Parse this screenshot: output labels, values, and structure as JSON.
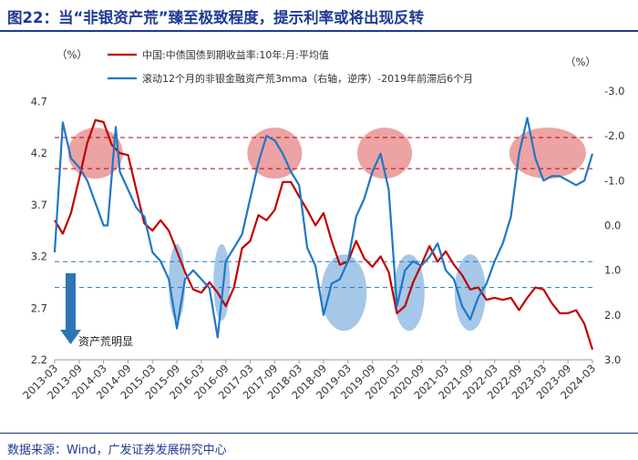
{
  "header": {
    "title": "图22：当“非银资产荒”臻至极致程度，提示利率或将出现反转"
  },
  "footer": {
    "source": "数据来源：Wind，广发证券发展研究中心"
  },
  "colors": {
    "title": "#1f3a93",
    "red": "#c00000",
    "blue": "#1f77c7",
    "ellipse_red": "#e06666",
    "ellipse_blue": "#5b9bd5"
  },
  "chart_data": {
    "type": "line",
    "left_axis": {
      "unit": "（%）",
      "ticks": [
        2.2,
        2.7,
        3.2,
        3.7,
        4.2,
        4.7
      ],
      "range": [
        2.2,
        4.8
      ]
    },
    "right_axis": {
      "unit": "（%）",
      "inverted": true,
      "ticks": [
        -3.0,
        -2.0,
        -1.0,
        0.0,
        1.0,
        2.0,
        3.0
      ],
      "range": [
        -3.0,
        3.0
      ]
    },
    "x_ticks": [
      "2013-03",
      "2013-09",
      "2014-03",
      "2014-09",
      "2015-03",
      "2015-09",
      "2016-03",
      "2016-09",
      "2017-03",
      "2017-09",
      "2018-03",
      "2018-09",
      "2019-03",
      "2019-09",
      "2020-03",
      "2020-09",
      "2021-03",
      "2021-09",
      "2022-03",
      "2022-09",
      "2023-03",
      "2023-09",
      "2024-03"
    ],
    "annotation": "资产荒明显",
    "series": [
      {
        "name": "中国:中债国债到期收益率:10年:月:平均值",
        "axis": "left",
        "color": "#c00000",
        "points": [
          [
            "2013-03",
            3.55
          ],
          [
            "2013-05",
            3.42
          ],
          [
            "2013-07",
            3.62
          ],
          [
            "2013-09",
            3.95
          ],
          [
            "2013-11",
            4.3
          ],
          [
            "2014-01",
            4.52
          ],
          [
            "2014-03",
            4.5
          ],
          [
            "2014-05",
            4.28
          ],
          [
            "2014-07",
            4.2
          ],
          [
            "2014-09",
            4.18
          ],
          [
            "2014-11",
            3.85
          ],
          [
            "2015-01",
            3.52
          ],
          [
            "2015-03",
            3.45
          ],
          [
            "2015-05",
            3.55
          ],
          [
            "2015-07",
            3.45
          ],
          [
            "2015-09",
            3.25
          ],
          [
            "2015-11",
            3.05
          ],
          [
            "2016-01",
            2.88
          ],
          [
            "2016-03",
            2.85
          ],
          [
            "2016-05",
            2.95
          ],
          [
            "2016-07",
            2.85
          ],
          [
            "2016-09",
            2.72
          ],
          [
            "2016-11",
            2.9
          ],
          [
            "2017-01",
            3.28
          ],
          [
            "2017-03",
            3.35
          ],
          [
            "2017-05",
            3.6
          ],
          [
            "2017-07",
            3.55
          ],
          [
            "2017-09",
            3.65
          ],
          [
            "2017-11",
            3.92
          ],
          [
            "2018-01",
            3.92
          ],
          [
            "2018-03",
            3.78
          ],
          [
            "2018-05",
            3.65
          ],
          [
            "2018-07",
            3.5
          ],
          [
            "2018-09",
            3.62
          ],
          [
            "2018-11",
            3.35
          ],
          [
            "2019-01",
            3.12
          ],
          [
            "2019-03",
            3.15
          ],
          [
            "2019-05",
            3.35
          ],
          [
            "2019-07",
            3.18
          ],
          [
            "2019-09",
            3.1
          ],
          [
            "2019-11",
            3.2
          ],
          [
            "2020-01",
            3.05
          ],
          [
            "2020-03",
            2.65
          ],
          [
            "2020-05",
            2.72
          ],
          [
            "2020-07",
            2.95
          ],
          [
            "2020-09",
            3.12
          ],
          [
            "2020-11",
            3.3
          ],
          [
            "2021-01",
            3.15
          ],
          [
            "2021-03",
            3.25
          ],
          [
            "2021-05",
            3.12
          ],
          [
            "2021-07",
            3.02
          ],
          [
            "2021-09",
            2.88
          ],
          [
            "2021-11",
            2.9
          ],
          [
            "2022-01",
            2.78
          ],
          [
            "2022-03",
            2.8
          ],
          [
            "2022-05",
            2.78
          ],
          [
            "2022-07",
            2.8
          ],
          [
            "2022-09",
            2.68
          ],
          [
            "2022-11",
            2.8
          ],
          [
            "2023-01",
            2.9
          ],
          [
            "2023-03",
            2.88
          ],
          [
            "2023-05",
            2.75
          ],
          [
            "2023-07",
            2.65
          ],
          [
            "2023-09",
            2.65
          ],
          [
            "2023-11",
            2.68
          ],
          [
            "2024-01",
            2.55
          ],
          [
            "2024-03",
            2.3
          ]
        ]
      },
      {
        "name": "滚动12个月的非银金融资产荒3mma（右轴，逆序）-2019年前滞后6个月",
        "axis": "right",
        "color": "#1f77c7",
        "points": [
          [
            "2013-03",
            0.6
          ],
          [
            "2013-05",
            -2.3
          ],
          [
            "2013-07",
            -1.5
          ],
          [
            "2013-09",
            -1.3
          ],
          [
            "2013-11",
            -1.0
          ],
          [
            "2014-01",
            -0.5
          ],
          [
            "2014-03",
            0.0
          ],
          [
            "2014-04",
            0.0
          ],
          [
            "2014-06",
            -2.2
          ],
          [
            "2014-07",
            -1.2
          ],
          [
            "2014-09",
            -0.8
          ],
          [
            "2014-11",
            -0.4
          ],
          [
            "2015-01",
            -0.2
          ],
          [
            "2015-03",
            0.6
          ],
          [
            "2015-05",
            0.8
          ],
          [
            "2015-07",
            1.2
          ],
          [
            "2015-09",
            2.3
          ],
          [
            "2015-11",
            1.2
          ],
          [
            "2016-01",
            1.0
          ],
          [
            "2016-03",
            1.2
          ],
          [
            "2016-05",
            1.4
          ],
          [
            "2016-07",
            2.5
          ],
          [
            "2016-09",
            0.8
          ],
          [
            "2016-11",
            0.5
          ],
          [
            "2017-01",
            0.2
          ],
          [
            "2017-03",
            -0.6
          ],
          [
            "2017-05",
            -1.4
          ],
          [
            "2017-07",
            -2.0
          ],
          [
            "2017-09",
            -1.9
          ],
          [
            "2017-11",
            -1.6
          ],
          [
            "2018-01",
            -1.2
          ],
          [
            "2018-03",
            -0.9
          ],
          [
            "2018-05",
            0.5
          ],
          [
            "2018-07",
            0.9
          ],
          [
            "2018-09",
            2.0
          ],
          [
            "2018-11",
            1.3
          ],
          [
            "2019-01",
            1.2
          ],
          [
            "2019-03",
            0.8
          ],
          [
            "2019-05",
            -0.2
          ],
          [
            "2019-07",
            -0.6
          ],
          [
            "2019-09",
            -1.2
          ],
          [
            "2019-11",
            -1.6
          ],
          [
            "2020-01",
            -0.8
          ],
          [
            "2020-03",
            1.8
          ],
          [
            "2020-05",
            1.0
          ],
          [
            "2020-07",
            0.8
          ],
          [
            "2020-09",
            0.9
          ],
          [
            "2020-11",
            0.7
          ],
          [
            "2021-01",
            0.4
          ],
          [
            "2021-03",
            1.0
          ],
          [
            "2021-05",
            1.2
          ],
          [
            "2021-07",
            1.8
          ],
          [
            "2021-09",
            2.1
          ],
          [
            "2021-11",
            1.6
          ],
          [
            "2022-01",
            1.3
          ],
          [
            "2022-03",
            0.8
          ],
          [
            "2022-05",
            0.4
          ],
          [
            "2022-07",
            -0.2
          ],
          [
            "2022-09",
            -1.6
          ],
          [
            "2022-11",
            -2.4
          ],
          [
            "2023-01",
            -1.5
          ],
          [
            "2023-03",
            -1.0
          ],
          [
            "2023-05",
            -1.1
          ],
          [
            "2023-07",
            -1.1
          ],
          [
            "2023-09",
            -1.0
          ],
          [
            "2023-11",
            -0.9
          ],
          [
            "2024-01",
            -1.0
          ],
          [
            "2024-03",
            -1.6
          ]
        ]
      }
    ],
    "reference_lines": [
      {
        "axis": "left",
        "value": 4.35,
        "color": "#c00000"
      },
      {
        "axis": "left",
        "value": 4.05,
        "color": "#c00000"
      },
      {
        "axis": "left",
        "value": 3.15,
        "color": "#1f77c7"
      },
      {
        "axis": "left",
        "value": 2.9,
        "color": "#1f77c7"
      }
    ],
    "highlight_regions": [
      {
        "kind": "high",
        "x": "2014-01",
        "y": 4.2,
        "axis": "left"
      },
      {
        "kind": "high",
        "x": "2017-09",
        "y": 4.2,
        "axis": "left"
      },
      {
        "kind": "high",
        "x": "2019-12",
        "y": 4.2,
        "axis": "left"
      },
      {
        "kind": "high",
        "x": "2023-04",
        "y": 4.2,
        "axis": "left"
      },
      {
        "kind": "low",
        "x": "2015-09",
        "y": 2.95,
        "axis": "left"
      },
      {
        "kind": "low",
        "x": "2016-08",
        "y": 2.95,
        "axis": "left"
      },
      {
        "kind": "low",
        "x": "2019-02",
        "y": 2.85,
        "axis": "left"
      },
      {
        "kind": "low",
        "x": "2020-06",
        "y": 2.85,
        "axis": "left"
      },
      {
        "kind": "low",
        "x": "2021-09",
        "y": 2.85,
        "axis": "left"
      }
    ]
  }
}
